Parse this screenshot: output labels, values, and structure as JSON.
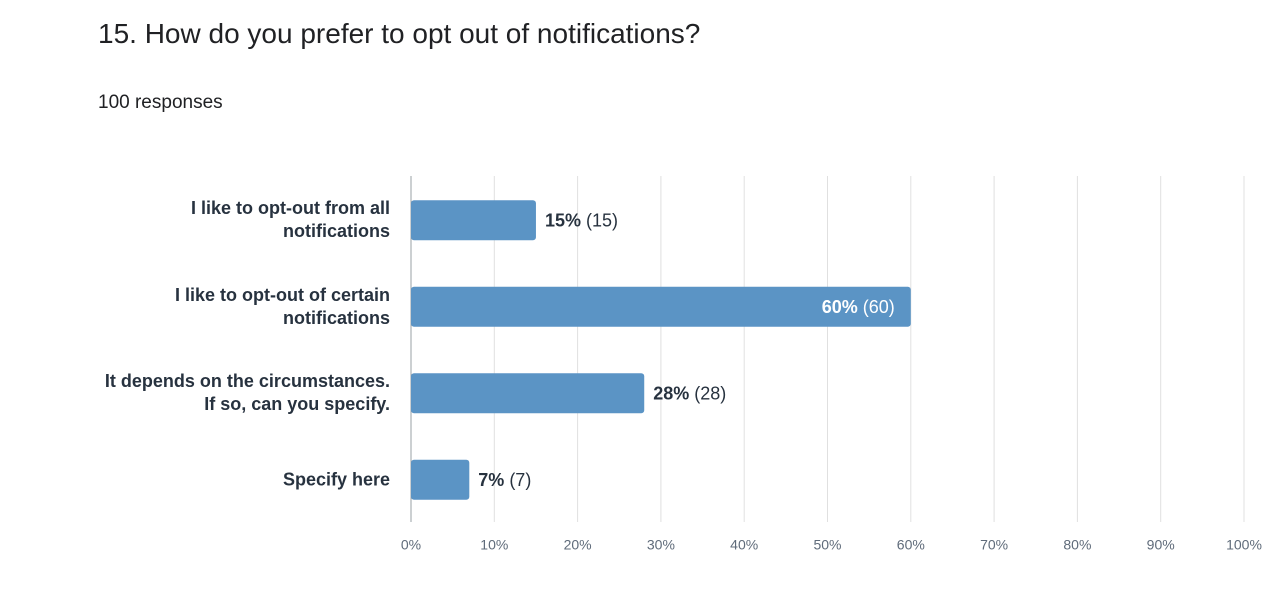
{
  "chart_data": {
    "type": "bar",
    "orientation": "horizontal",
    "title": "15. How do you prefer to opt out of notifications?",
    "subtitle": "100 responses",
    "categories": [
      "I like to opt-out from all notifications",
      "I like to opt-out of certain notifications",
      "It depends on the circumstances. If so, can you specify.",
      "Specify here"
    ],
    "values": [
      15,
      60,
      28,
      7
    ],
    "value_labels": [
      "15% (15)",
      "60% (60)",
      "28% (28)",
      "7% (7)"
    ],
    "color": "#5b94c5",
    "xlim": [
      0,
      100
    ],
    "xticks": [
      {
        "value": 0,
        "label": "0%"
      },
      {
        "value": 10,
        "label": "10%"
      },
      {
        "value": 20,
        "label": "20%"
      },
      {
        "value": 30,
        "label": "30%"
      },
      {
        "value": 40,
        "label": "40%"
      },
      {
        "value": 50,
        "label": "50%"
      },
      {
        "value": 60,
        "label": "60%"
      },
      {
        "value": 70,
        "label": "70%"
      },
      {
        "value": 80,
        "label": "80%"
      },
      {
        "value": 90,
        "label": "90%"
      },
      {
        "value": 100,
        "label": "100%"
      }
    ],
    "grid": true
  }
}
